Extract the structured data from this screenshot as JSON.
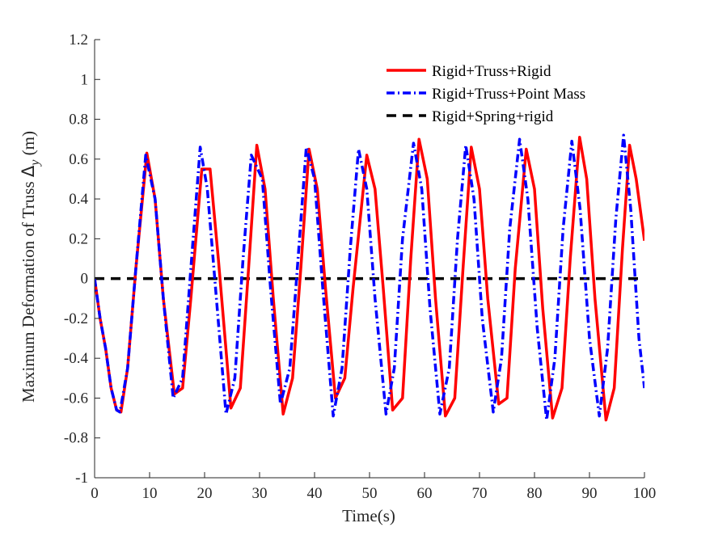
{
  "chart_data": {
    "type": "line",
    "title": "",
    "xlabel": "Time(s)",
    "ylabel_main": "Maximum Deformation of Truss ",
    "ylabel_symbol": "Δ",
    "ylabel_sub": "y",
    "ylabel_unit": " (m)",
    "xlim": [
      0,
      100
    ],
    "ylim": [
      -1,
      1.2
    ],
    "xticks": [
      "0",
      "10",
      "20",
      "30",
      "40",
      "50",
      "60",
      "70",
      "80",
      "90",
      "100"
    ],
    "yticks": [
      "-1",
      "-0.8",
      "-0.6",
      "-0.4",
      "-0.2",
      "0",
      "0.2",
      "0.4",
      "0.6",
      "0.8",
      "1",
      "1.2"
    ],
    "grid": false,
    "legend_position": "top-right",
    "series": [
      {
        "name": "Rigid+Truss+Rigid",
        "color": "#ff0000",
        "style": "solid",
        "x": [
          0,
          1,
          2,
          3,
          4,
          4.8,
          6,
          7.5,
          9.5,
          11,
          12.5,
          14.5,
          16,
          17.5,
          19.5,
          21,
          22.5,
          24.8,
          26.5,
          28,
          29.5,
          31,
          32.5,
          34.3,
          36,
          37.5,
          39,
          40.5,
          42,
          43.8,
          45.5,
          47,
          49.5,
          51,
          52.5,
          54.2,
          56,
          57.5,
          59,
          60.5,
          62,
          63.8,
          65.5,
          67,
          68.5,
          70,
          71.5,
          73.5,
          75,
          76.5,
          78.5,
          80,
          81.5,
          83.3,
          85,
          86.5,
          88.2,
          89.5,
          91,
          93,
          94.5,
          96,
          97.3,
          98.5,
          100
        ],
        "y": [
          0,
          -0.2,
          -0.35,
          -0.55,
          -0.66,
          -0.67,
          -0.45,
          0.05,
          0.63,
          0.4,
          -0.1,
          -0.58,
          -0.55,
          -0.1,
          0.55,
          0.55,
          0.1,
          -0.65,
          -0.55,
          0.05,
          0.67,
          0.45,
          -0.1,
          -0.68,
          -0.5,
          0.05,
          0.65,
          0.45,
          -0.05,
          -0.6,
          -0.5,
          -0.05,
          0.62,
          0.45,
          -0.05,
          -0.66,
          -0.6,
          0.1,
          0.7,
          0.5,
          -0.1,
          -0.69,
          -0.6,
          0.05,
          0.66,
          0.45,
          -0.1,
          -0.63,
          -0.6,
          0.05,
          0.65,
          0.45,
          -0.15,
          -0.7,
          -0.55,
          0.1,
          0.71,
          0.5,
          -0.1,
          -0.71,
          -0.55,
          0.15,
          0.67,
          0.5,
          0.19
        ]
      },
      {
        "name": "Rigid+Truss+Point Mass",
        "color": "#0000ff",
        "style": "dashdot",
        "x": [
          0,
          1,
          2,
          3,
          4,
          4.6,
          6,
          7.5,
          9.3,
          11,
          12.5,
          14.3,
          16,
          17.5,
          19.2,
          20.5,
          22,
          23.9,
          25.5,
          27,
          28.5,
          30.5,
          32,
          33.8,
          35.5,
          37,
          38.5,
          40,
          41.5,
          43.4,
          45,
          46.5,
          48,
          49.5,
          51,
          53,
          54.5,
          56,
          58,
          59.5,
          61,
          62.8,
          64.5,
          66,
          67.5,
          69,
          70.5,
          72.5,
          74,
          75.5,
          77.3,
          78.8,
          80.5,
          82.2,
          83.7,
          85.2,
          86.8,
          88.3,
          90,
          91.8,
          93.3,
          94.8,
          96.2,
          97.5,
          99,
          100
        ],
        "y": [
          0,
          -0.2,
          -0.35,
          -0.55,
          -0.66,
          -0.67,
          -0.45,
          0.05,
          0.62,
          0.4,
          -0.1,
          -0.6,
          -0.5,
          0.05,
          0.66,
          0.45,
          -0.05,
          -0.68,
          -0.5,
          0.1,
          0.62,
          0.5,
          -0.05,
          -0.63,
          -0.45,
          0.1,
          0.66,
          0.5,
          -0.05,
          -0.69,
          -0.45,
          0.15,
          0.65,
          0.45,
          -0.1,
          -0.68,
          -0.45,
          0.2,
          0.68,
          0.45,
          -0.15,
          -0.68,
          -0.45,
          0.2,
          0.67,
          0.4,
          -0.2,
          -0.67,
          -0.4,
          0.25,
          0.7,
          0.4,
          -0.25,
          -0.71,
          -0.4,
          0.25,
          0.69,
          0.35,
          -0.3,
          -0.69,
          -0.35,
          0.3,
          0.72,
          0.35,
          -0.3,
          -0.55
        ]
      },
      {
        "name": "Rigid+Spring+rigid",
        "color": "#000000",
        "style": "dashed",
        "x": [
          0,
          100
        ],
        "y": [
          0,
          0
        ]
      }
    ]
  }
}
